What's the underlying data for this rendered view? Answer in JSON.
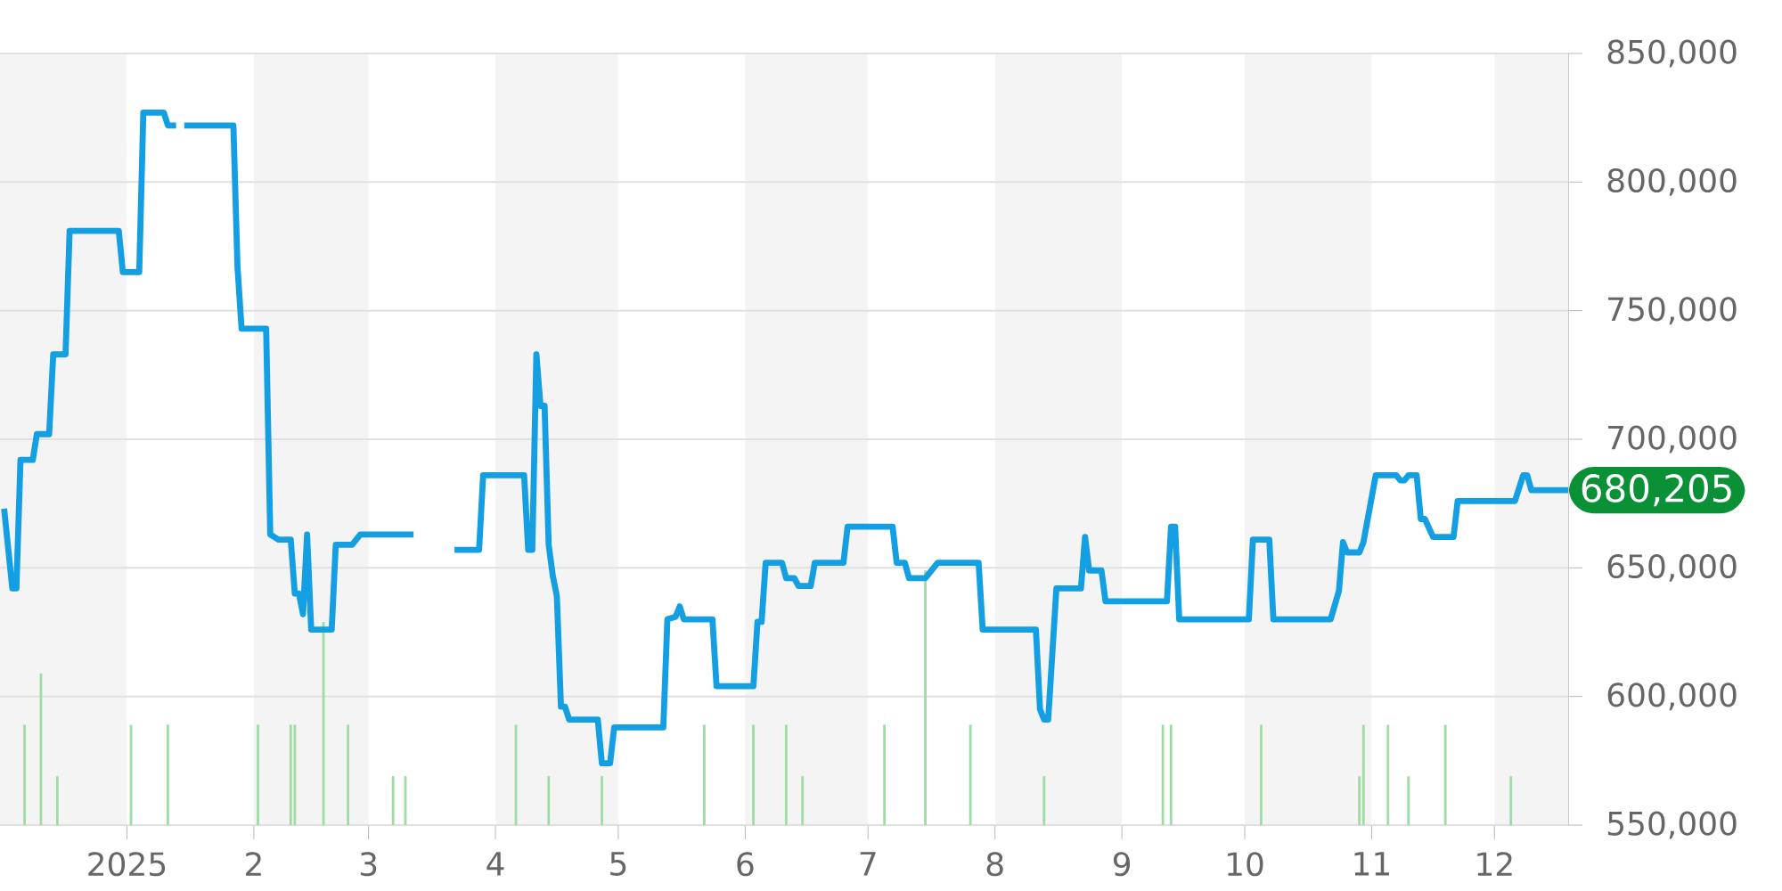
{
  "chart_data": {
    "type": "line",
    "x": [
      "2024-12-02",
      "2024-12-04",
      "2024-12-05",
      "2024-12-06",
      "2024-12-09",
      "2024-12-10",
      "2024-12-13",
      "2024-12-14",
      "2024-12-17",
      "2024-12-18",
      "2024-12-30",
      "2024-12-31",
      "2025-01-04",
      "2025-01-05",
      "2025-01-10",
      "2025-01-11",
      "2025-01-13",
      "2025-01-14",
      "2025-01-15",
      "2025-01-27",
      "2025-01-28",
      "2025-01-29",
      "2025-02-04",
      "2025-02-05",
      "2025-02-07",
      "2025-02-10",
      "2025-02-11",
      "2025-02-12",
      "2025-02-13",
      "2025-02-14",
      "2025-02-15",
      "2025-02-20",
      "2025-02-21",
      "2025-02-25",
      "2025-02-27",
      "2025-03-12",
      "2025-03-17",
      "2025-03-22",
      "2025-03-28",
      "2025-03-29",
      "2025-04-08",
      "2025-04-09",
      "2025-04-10",
      "2025-04-11",
      "2025-04-12",
      "2025-04-13",
      "2025-04-14",
      "2025-04-15",
      "2025-04-16",
      "2025-04-17",
      "2025-04-18",
      "2025-04-19",
      "2025-04-26",
      "2025-04-27",
      "2025-04-29",
      "2025-04-30",
      "2025-05-12",
      "2025-05-13",
      "2025-05-15",
      "2025-05-16",
      "2025-05-17",
      "2025-05-24",
      "2025-05-25",
      "2025-06-03",
      "2025-06-04",
      "2025-06-05",
      "2025-06-06",
      "2025-06-10",
      "2025-06-11",
      "2025-06-13",
      "2025-06-14",
      "2025-06-17",
      "2025-06-18",
      "2025-06-25",
      "2025-06-26",
      "2025-07-07",
      "2025-07-08",
      "2025-07-10",
      "2025-07-11",
      "2025-07-15",
      "2025-07-18",
      "2025-07-28",
      "2025-07-29",
      "2025-08-11",
      "2025-08-12",
      "2025-08-13",
      "2025-08-14",
      "2025-08-16",
      "2025-08-22",
      "2025-08-23",
      "2025-08-24",
      "2025-08-27",
      "2025-08-28",
      "2025-09-12",
      "2025-09-13",
      "2025-09-14",
      "2025-09-15",
      "2025-10-02",
      "2025-10-03",
      "2025-10-07",
      "2025-10-08",
      "2025-10-22",
      "2025-10-24",
      "2025-10-25",
      "2025-10-26",
      "2025-10-29",
      "2025-10-30",
      "2025-11-02",
      "2025-11-07",
      "2025-11-08",
      "2025-11-09",
      "2025-11-10",
      "2025-11-12",
      "2025-11-13",
      "2025-11-14",
      "2025-11-16",
      "2025-11-21",
      "2025-11-22",
      "2025-12-06",
      "2025-12-08",
      "2025-12-09",
      "2025-12-10",
      "2025-12-19"
    ],
    "series": [
      {
        "color": "#139fe2",
        "values": [
          673000,
          642000,
          642000,
          692000,
          692000,
          702000,
          702000,
          733000,
          733000,
          781000,
          781000,
          765000,
          765000,
          827000,
          827000,
          822000,
          822000,
          null,
          822000,
          822000,
          767000,
          743000,
          743000,
          663000,
          661000,
          661000,
          640000,
          640000,
          632000,
          663000,
          626000,
          626000,
          659000,
          659000,
          663000,
          663000,
          null,
          657000,
          657000,
          686000,
          686000,
          657000,
          657000,
          733000,
          713000,
          713000,
          659000,
          647000,
          639000,
          596000,
          596000,
          591000,
          591000,
          574000,
          574000,
          588000,
          588000,
          630000,
          631000,
          635000,
          630000,
          630000,
          604000,
          604000,
          629000,
          629000,
          652000,
          652000,
          646000,
          646000,
          643000,
          643000,
          652000,
          652000,
          666000,
          666000,
          652000,
          652000,
          646000,
          646000,
          652000,
          652000,
          626000,
          626000,
          595000,
          591000,
          591000,
          642000,
          642000,
          662000,
          649000,
          649000,
          637000,
          637000,
          666000,
          666000,
          630000,
          630000,
          661000,
          661000,
          630000,
          630000,
          641000,
          660000,
          656000,
          656000,
          660000,
          686000,
          686000,
          684000,
          684000,
          686000,
          686000,
          669000,
          669000,
          662000,
          662000,
          676000,
          676000,
          686000,
          686000,
          680205,
          680205
        ]
      },
      {
        "type": "bar",
        "color": "#9ddca2",
        "x": [
          "2024-12-07",
          "2024-12-11",
          "2024-12-15",
          "2025-01-02",
          "2025-01-11",
          "2025-02-02",
          "2025-02-10",
          "2025-02-11",
          "2025-02-18",
          "2025-02-24",
          "2025-03-07",
          "2025-03-10",
          "2025-04-06",
          "2025-04-14",
          "2025-04-27",
          "2025-05-22",
          "2025-06-03",
          "2025-06-11",
          "2025-06-15",
          "2025-07-05",
          "2025-07-15",
          "2025-07-26",
          "2025-08-13",
          "2025-09-11",
          "2025-09-13",
          "2025-10-05",
          "2025-10-29",
          "2025-10-30",
          "2025-11-05",
          "2025-11-10",
          "2025-11-19",
          "2025-12-05"
        ],
        "values": [
          589000,
          609000,
          569000,
          589000,
          589000,
          589000,
          589000,
          589000,
          629000,
          589000,
          569000,
          569000,
          589000,
          569000,
          569000,
          589000,
          589000,
          589000,
          569000,
          589000,
          649000,
          589000,
          569000,
          589000,
          589000,
          589000,
          569000,
          589000,
          589000,
          569000,
          589000,
          569000
        ]
      }
    ],
    "xlim": [
      "2024-12-01",
      "2025-12-19"
    ],
    "xticks": [
      {
        "value": "2025-01-01",
        "label": "2025"
      },
      {
        "value": "2025-02-01",
        "label": "2"
      },
      {
        "value": "2025-03-01",
        "label": "3"
      },
      {
        "value": "2025-04-01",
        "label": "4"
      },
      {
        "value": "2025-05-01",
        "label": "5"
      },
      {
        "value": "2025-06-01",
        "label": "6"
      },
      {
        "value": "2025-07-01",
        "label": "7"
      },
      {
        "value": "2025-08-01",
        "label": "8"
      },
      {
        "value": "2025-09-01",
        "label": "9"
      },
      {
        "value": "2025-10-01",
        "label": "10"
      },
      {
        "value": "2025-11-01",
        "label": "11"
      },
      {
        "value": "2025-12-01",
        "label": "12"
      }
    ],
    "ylim": [
      550000,
      850000
    ],
    "yticks": [
      {
        "value": 550000,
        "label": "550,000"
      },
      {
        "value": 600000,
        "label": "600,000"
      },
      {
        "value": 650000,
        "label": "650,000"
      },
      {
        "value": 700000,
        "label": "700,000"
      },
      {
        "value": 750000,
        "label": "750,000"
      },
      {
        "value": 800000,
        "label": "800,000"
      },
      {
        "value": 850000,
        "label": "850,000"
      }
    ],
    "grid": "y",
    "bands": [
      {
        "axis": "x",
        "from": "2024-12-01",
        "to": "2025-01-01",
        "color": "#f4f4f4"
      },
      {
        "axis": "x",
        "from": "2025-02-01",
        "to": "2025-03-01",
        "color": "#f4f4f4"
      },
      {
        "axis": "x",
        "from": "2025-04-01",
        "to": "2025-05-01",
        "color": "#f4f4f4"
      },
      {
        "axis": "x",
        "from": "2025-06-01",
        "to": "2025-07-01",
        "color": "#f4f4f4"
      },
      {
        "axis": "x",
        "from": "2025-08-01",
        "to": "2025-09-01",
        "color": "#f4f4f4"
      },
      {
        "axis": "x",
        "from": "2025-10-01",
        "to": "2025-11-01",
        "color": "#f4f4f4"
      },
      {
        "axis": "x",
        "from": "2025-12-01",
        "to": "2025-12-19",
        "color": "#f4f4f4"
      }
    ],
    "annotations": [
      {
        "text": "680,205",
        "x": "2025-12-19",
        "y": 680205
      }
    ]
  }
}
